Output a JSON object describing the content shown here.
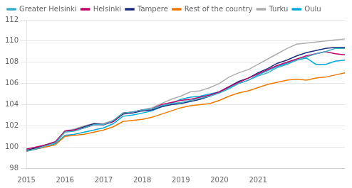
{
  "chart_data": {
    "type": "line",
    "categories": [
      "2015",
      null,
      null,
      null,
      "2016",
      null,
      null,
      null,
      "2017",
      null,
      null,
      null,
      "2018",
      null,
      null,
      null,
      "2019",
      null,
      null,
      null,
      "2020",
      null,
      null,
      null,
      "2021",
      null,
      null,
      null,
      null,
      null,
      null,
      null,
      null,
      null
    ],
    "series": [
      {
        "name": "Greater Helsinki",
        "color": "#3BAFC4",
        "values": [
          99.6,
          99.8,
          100.1,
          100.4,
          101.4,
          101.5,
          101.8,
          102.1,
          102.1,
          102.5,
          103.2,
          103.3,
          103.5,
          103.6,
          103.9,
          104.1,
          104.2,
          104.4,
          104.6,
          104.8,
          105.1,
          105.5,
          106.0,
          106.3,
          106.7,
          107.0,
          107.5,
          107.8,
          108.2,
          108.5,
          108.8,
          109.0,
          109.3,
          109.3
        ]
      },
      {
        "name": "Helsinki",
        "color": "#C0006A",
        "values": [
          99.8,
          100.0,
          100.2,
          100.5,
          101.5,
          101.6,
          101.8,
          102.1,
          102.1,
          102.4,
          103.2,
          103.3,
          103.5,
          103.6,
          104.0,
          104.2,
          104.4,
          104.5,
          104.7,
          104.9,
          105.2,
          105.7,
          106.1,
          106.5,
          106.9,
          107.3,
          107.7,
          108.0,
          108.3,
          108.6,
          108.8,
          109.0,
          108.8,
          108.7
        ]
      },
      {
        "name": "Tampere",
        "color": "#1A2F80",
        "values": [
          99.7,
          99.9,
          100.2,
          100.4,
          101.5,
          101.6,
          101.9,
          102.2,
          102.1,
          102.4,
          103.1,
          103.2,
          103.4,
          103.5,
          103.8,
          104.0,
          104.1,
          104.3,
          104.5,
          104.8,
          105.2,
          105.7,
          106.2,
          106.5,
          107.0,
          107.4,
          107.9,
          108.2,
          108.6,
          108.9,
          109.1,
          109.3,
          109.4,
          109.4
        ]
      },
      {
        "name": "Rest of the country",
        "color": "#F07800",
        "values": [
          99.6,
          99.8,
          100.0,
          100.2,
          101.0,
          101.1,
          101.2,
          101.4,
          101.6,
          101.9,
          102.4,
          102.5,
          102.6,
          102.8,
          103.1,
          103.4,
          103.7,
          103.9,
          104.0,
          104.1,
          104.4,
          104.8,
          105.1,
          105.3,
          105.6,
          105.9,
          106.1,
          106.3,
          106.4,
          106.3,
          106.5,
          106.6,
          106.8,
          107.0
        ]
      },
      {
        "name": "Turku",
        "color": "#ADADAD",
        "values": [
          99.7,
          99.9,
          100.2,
          100.5,
          101.5,
          101.7,
          102.0,
          102.2,
          102.2,
          102.5,
          103.2,
          103.3,
          103.5,
          103.7,
          104.1,
          104.5,
          104.8,
          105.2,
          105.3,
          105.6,
          106.0,
          106.6,
          107.0,
          107.3,
          107.8,
          108.3,
          108.8,
          109.3,
          109.7,
          109.8,
          109.9,
          110.0,
          110.1,
          110.2
        ]
      },
      {
        "name": "Oulu",
        "color": "#00AADC",
        "values": [
          99.6,
          99.8,
          100.0,
          100.3,
          101.1,
          101.2,
          101.4,
          101.6,
          101.8,
          102.2,
          102.9,
          103.0,
          103.2,
          103.4,
          103.8,
          104.1,
          104.5,
          104.7,
          104.8,
          105.0,
          105.2,
          105.6,
          106.0,
          106.3,
          106.8,
          107.2,
          107.6,
          107.9,
          108.2,
          108.4,
          107.8,
          107.8,
          108.1,
          108.2
        ]
      }
    ],
    "ylim": [
      98,
      112
    ],
    "yticks": [
      98,
      100,
      102,
      104,
      106,
      108,
      110,
      112
    ],
    "grid": "y",
    "legend": "top-left"
  }
}
